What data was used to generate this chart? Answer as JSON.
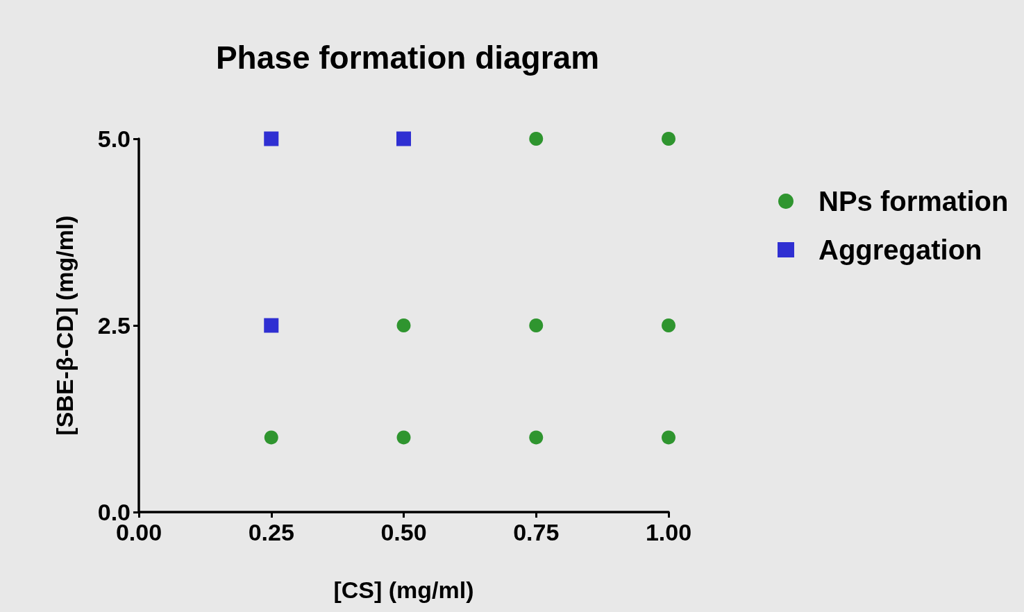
{
  "chart_data": {
    "type": "scatter",
    "title": "Phase formation diagram",
    "xlabel": "[CS] (mg/ml)",
    "ylabel": "[SBE-β-CD] (mg/ml)",
    "series": [
      {
        "name": "NPs formation",
        "color": "#008000",
        "marker": "circle",
        "x": [
          0.75,
          1.0,
          0.5,
          0.75,
          1.0,
          0.25,
          0.5,
          0.75,
          1.0
        ],
        "values": [
          5.0,
          5.0,
          2.5,
          2.5,
          2.5,
          1.0,
          1.0,
          1.0,
          1.0
        ]
      },
      {
        "name": "Aggregation",
        "color": "#0000cc",
        "marker": "square",
        "x": [
          0.25,
          0.5,
          0.25
        ],
        "values": [
          5.0,
          5.0,
          2.5
        ]
      }
    ],
    "xlim": [
      0,
      1
    ],
    "ylim": [
      0,
      5
    ],
    "xticks": [
      {
        "value": 0,
        "label": "0.00"
      },
      {
        "value": 0.25,
        "label": "0.25"
      },
      {
        "value": 0.5,
        "label": "0.50"
      },
      {
        "value": 0.75,
        "label": "0.75"
      },
      {
        "value": 1,
        "label": "1.00"
      }
    ],
    "yticks": [
      {
        "value": 0,
        "label": "0.0"
      },
      {
        "value": 2.5,
        "label": "2.5"
      },
      {
        "value": 5,
        "label": "5.0"
      }
    ],
    "grid": false,
    "legend": "right"
  }
}
